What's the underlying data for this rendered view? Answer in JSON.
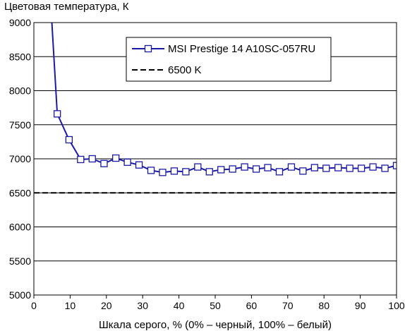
{
  "chart_data": {
    "type": "line",
    "title": "",
    "ylabel": "Цветовая температура, К",
    "xlabel": "Шкала серого, % (0% – черный, 100% – белый)",
    "xlim": [
      0,
      100
    ],
    "ylim": [
      5000,
      9000
    ],
    "xticks": [
      0,
      10,
      20,
      30,
      40,
      50,
      60,
      70,
      80,
      90,
      100
    ],
    "yticks": [
      5000,
      5500,
      6000,
      6500,
      7000,
      7500,
      8000,
      8500,
      9000
    ],
    "grid": "horizontal",
    "legend_position": "top-right",
    "series": [
      {
        "name": "MSI Prestige 14 A10SC-057RU",
        "color": "#1a1aa6",
        "marker": "square",
        "x": [
          4.3,
          6.45,
          9.7,
          12.9,
          16.1,
          19.35,
          22.6,
          25.8,
          29.0,
          32.3,
          35.5,
          38.7,
          41.9,
          45.2,
          48.4,
          51.6,
          54.8,
          58.1,
          61.3,
          64.5,
          67.7,
          71.0,
          74.2,
          77.4,
          80.6,
          83.9,
          87.1,
          90.3,
          93.5,
          96.8,
          100
        ],
        "y": [
          9600,
          7660,
          7280,
          6990,
          7000,
          6930,
          7010,
          6950,
          6910,
          6830,
          6800,
          6820,
          6810,
          6880,
          6810,
          6840,
          6850,
          6880,
          6850,
          6870,
          6810,
          6880,
          6820,
          6870,
          6860,
          6870,
          6860,
          6860,
          6880,
          6860,
          6900
        ]
      },
      {
        "name": "6500 K",
        "color": "#000000",
        "style": "dashed",
        "x": [
          0,
          100
        ],
        "y": [
          6500,
          6500
        ]
      }
    ]
  }
}
